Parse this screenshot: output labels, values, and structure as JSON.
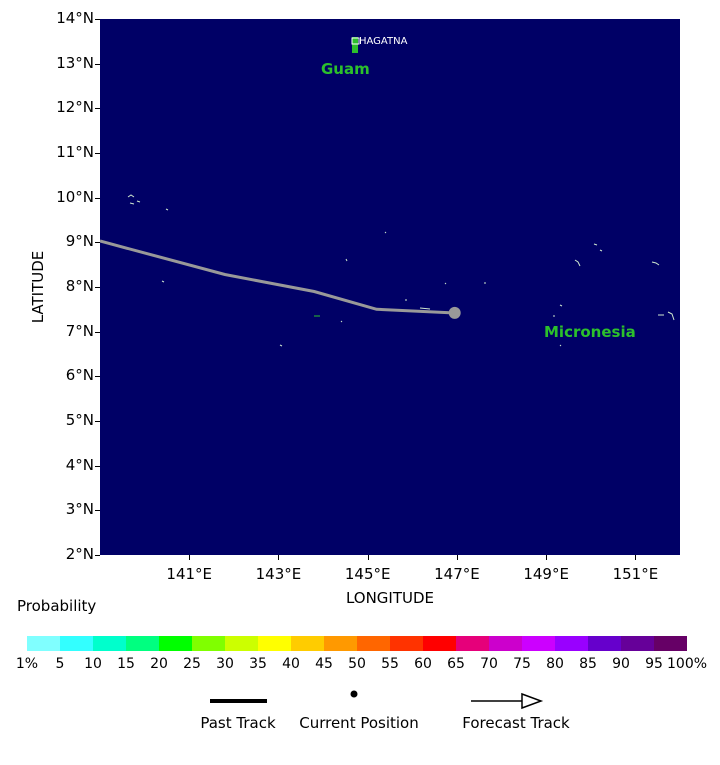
{
  "map": {
    "lat_labels": [
      "14°N",
      "13°N",
      "12°N",
      "11°N",
      "10°N",
      "9°N",
      "8°N",
      "7°N",
      "6°N",
      "5°N",
      "4°N",
      "3°N",
      "2°N"
    ],
    "lon_labels": [
      "141°E",
      "143°E",
      "145°E",
      "147°E",
      "149°E",
      "151°E"
    ],
    "y_axis_title": "LATITUDE",
    "x_axis_title": "LONGITUDE",
    "city_label": "HAGATNA",
    "place_labels": {
      "guam": "Guam",
      "micronesia": "Micronesia"
    },
    "lat_range": [
      2,
      14
    ],
    "lon_range": [
      139.0,
      152.0
    ],
    "ocean_color": "#000066",
    "track_color": "#999999",
    "past_track": [
      [
        139.0,
        9.03
      ],
      [
        141.8,
        8.28
      ],
      [
        143.8,
        7.9
      ],
      [
        145.2,
        7.5
      ],
      [
        146.9,
        7.42
      ]
    ],
    "current_position": [
      146.95,
      7.42
    ]
  },
  "legend": {
    "title": "Probability",
    "colors": [
      "#80ffff",
      "#33ffff",
      "#00ffcc",
      "#00ff80",
      "#00ff00",
      "#80ff00",
      "#ccff00",
      "#ffff00",
      "#ffcc00",
      "#ff9900",
      "#ff6600",
      "#ff3300",
      "#ff0000",
      "#e6007a",
      "#cc00cc",
      "#cc00ff",
      "#9900ff",
      "#6600cc",
      "#660099",
      "#660066"
    ],
    "labels": [
      "1%",
      "5",
      "10",
      "15",
      "20",
      "25",
      "30",
      "35",
      "40",
      "45",
      "50",
      "55",
      "60",
      "65",
      "70",
      "75",
      "80",
      "85",
      "90",
      "95",
      "100%"
    ]
  },
  "key": {
    "past_track": "Past Track",
    "current_position": "Current Position",
    "forecast_track": "Forecast Track"
  }
}
